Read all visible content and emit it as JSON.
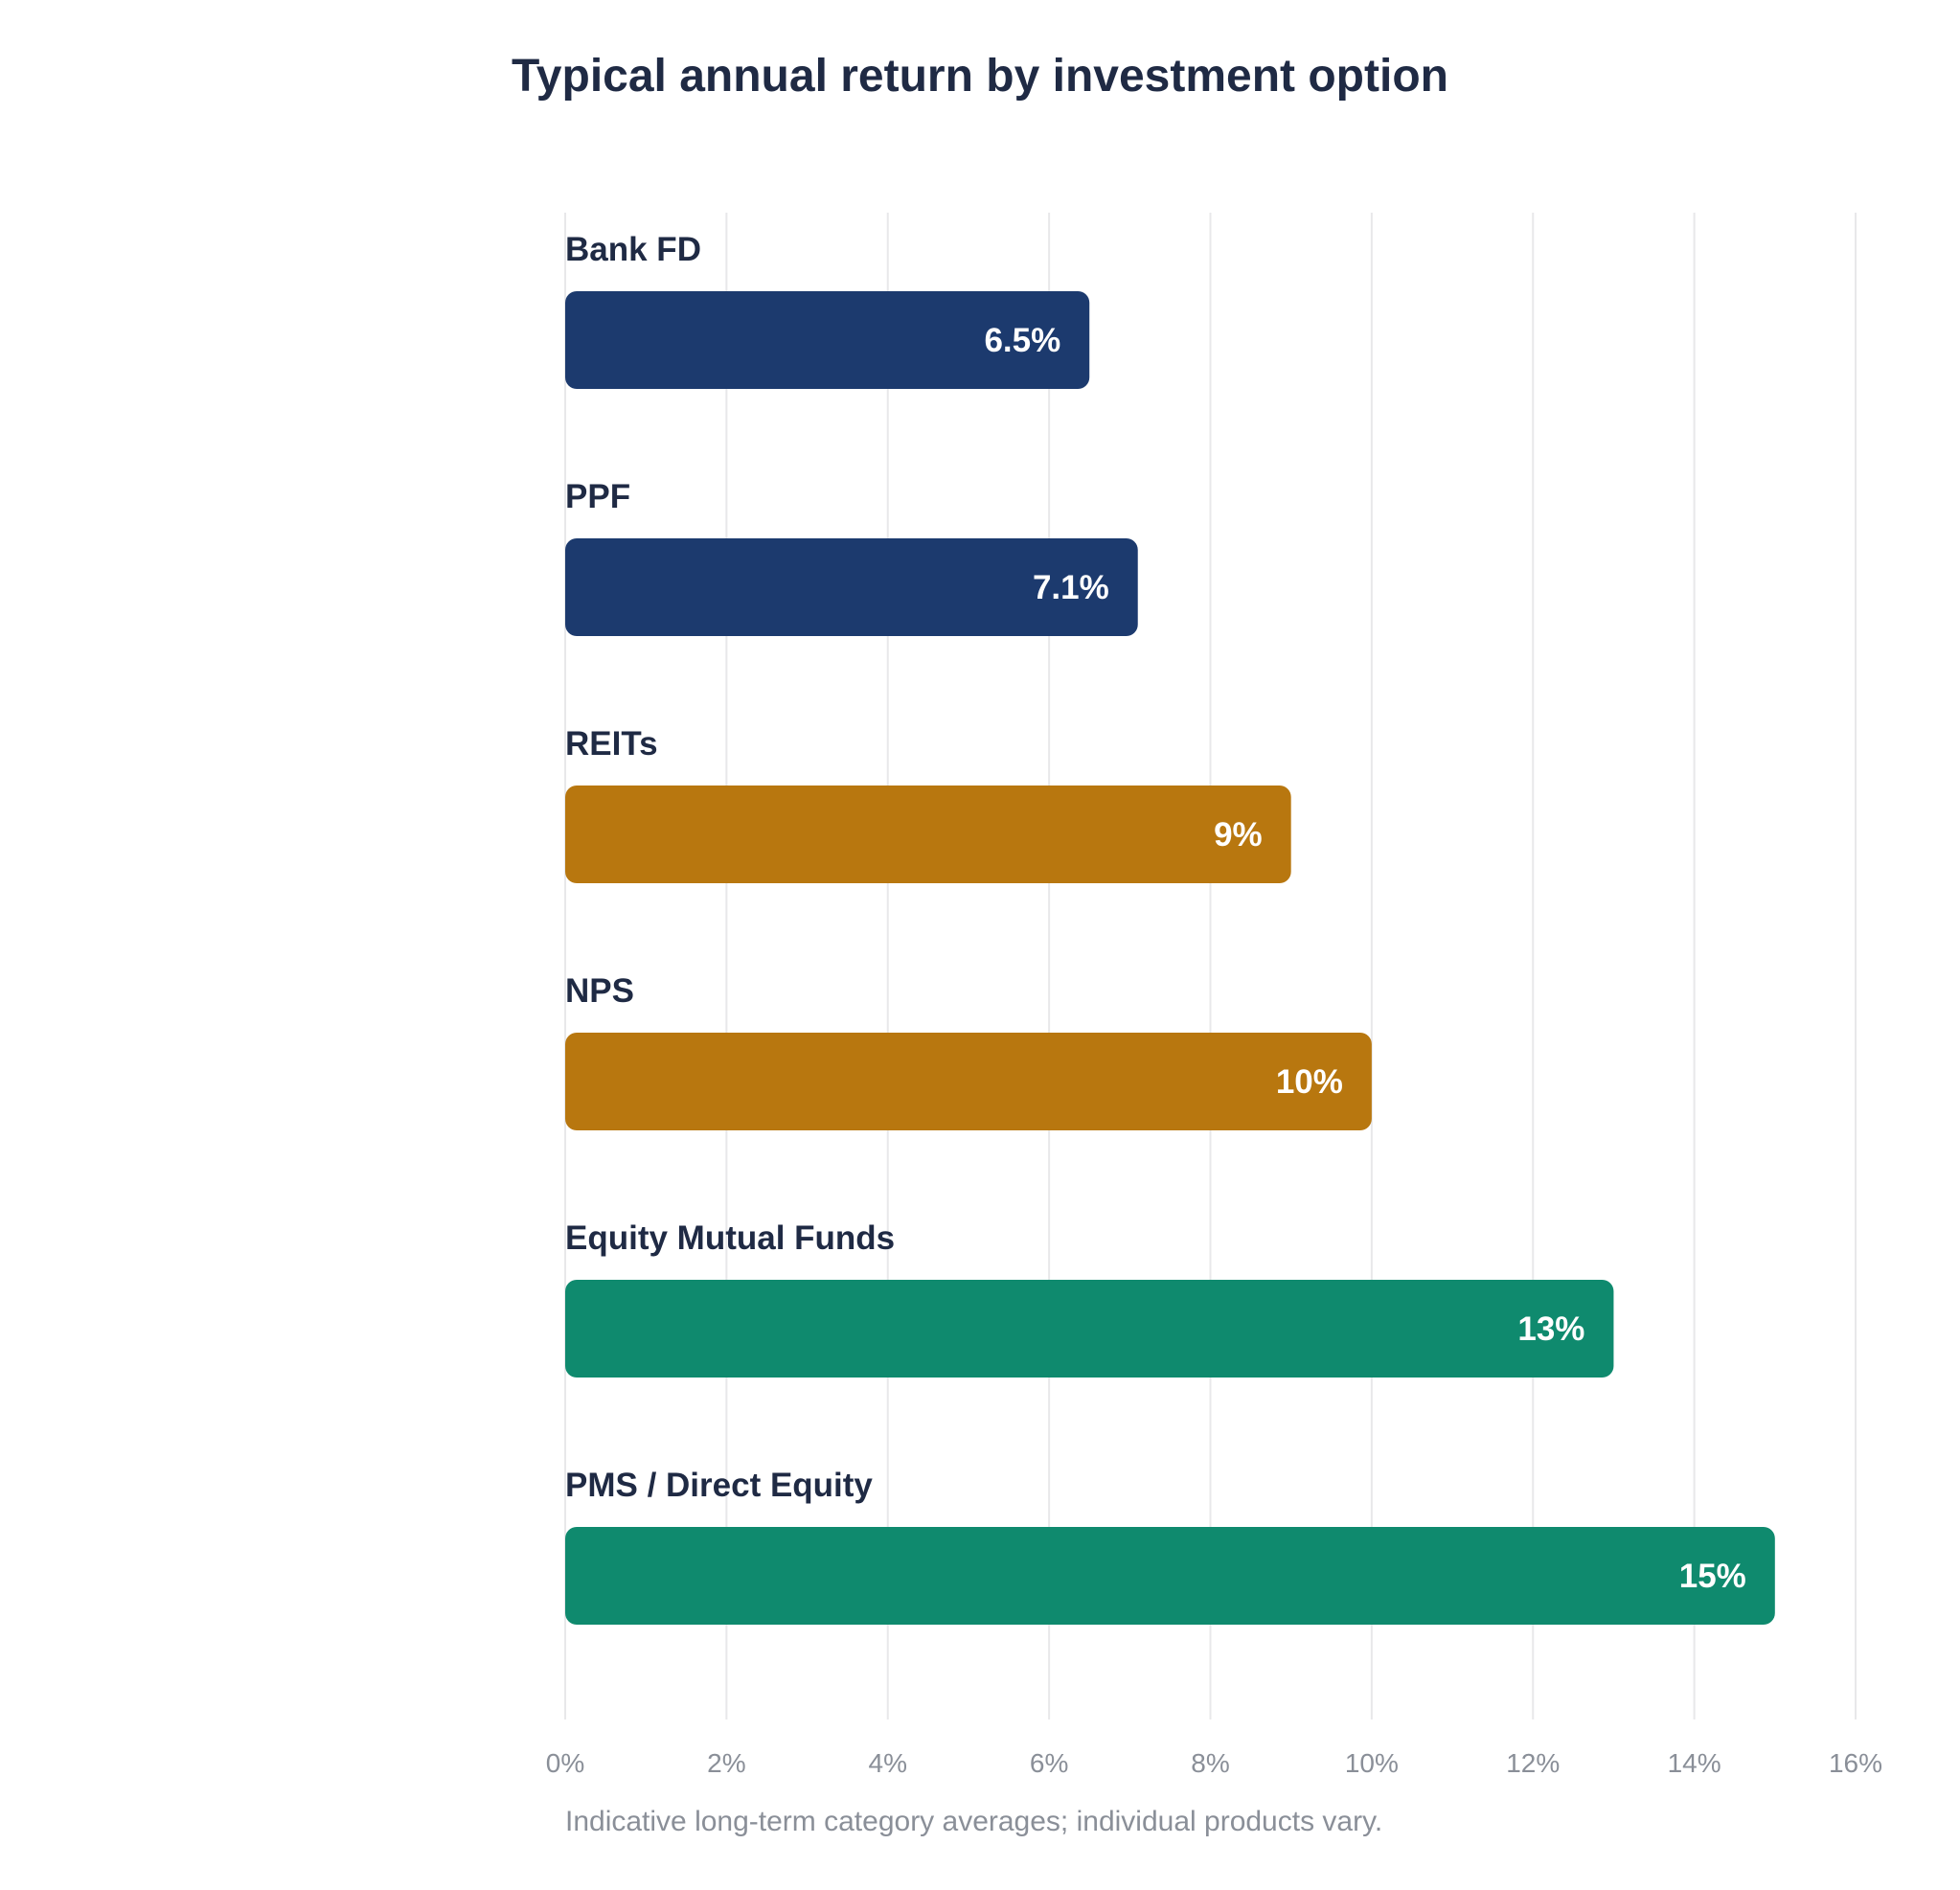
{
  "chart_data": {
    "type": "bar",
    "orientation": "horizontal",
    "title": "Typical annual return by investment option",
    "note": "Indicative long-term category averages; individual products vary.",
    "categories": [
      "Bank FD",
      "PPF",
      "REITs",
      "NPS",
      "Equity Mutual Funds",
      "PMS / Direct Equity"
    ],
    "values": [
      6.5,
      7.1,
      9,
      10,
      13,
      15
    ],
    "value_labels": [
      "6.5%",
      "7.1%",
      "9%",
      "10%",
      "13%",
      "15%"
    ],
    "bar_colors": [
      "#1c3a6e",
      "#1c3a6e",
      "#b8770f",
      "#b8770f",
      "#0f8a6e",
      "#0f8a6e"
    ],
    "xlim": [
      0,
      16
    ],
    "x_ticks": [
      0,
      2,
      4,
      6,
      8,
      10,
      12,
      14,
      16
    ],
    "x_tick_labels": [
      "0%",
      "2%",
      "4%",
      "6%",
      "8%",
      "10%",
      "12%",
      "14%",
      "16%"
    ],
    "grid": true,
    "legend": "none"
  }
}
